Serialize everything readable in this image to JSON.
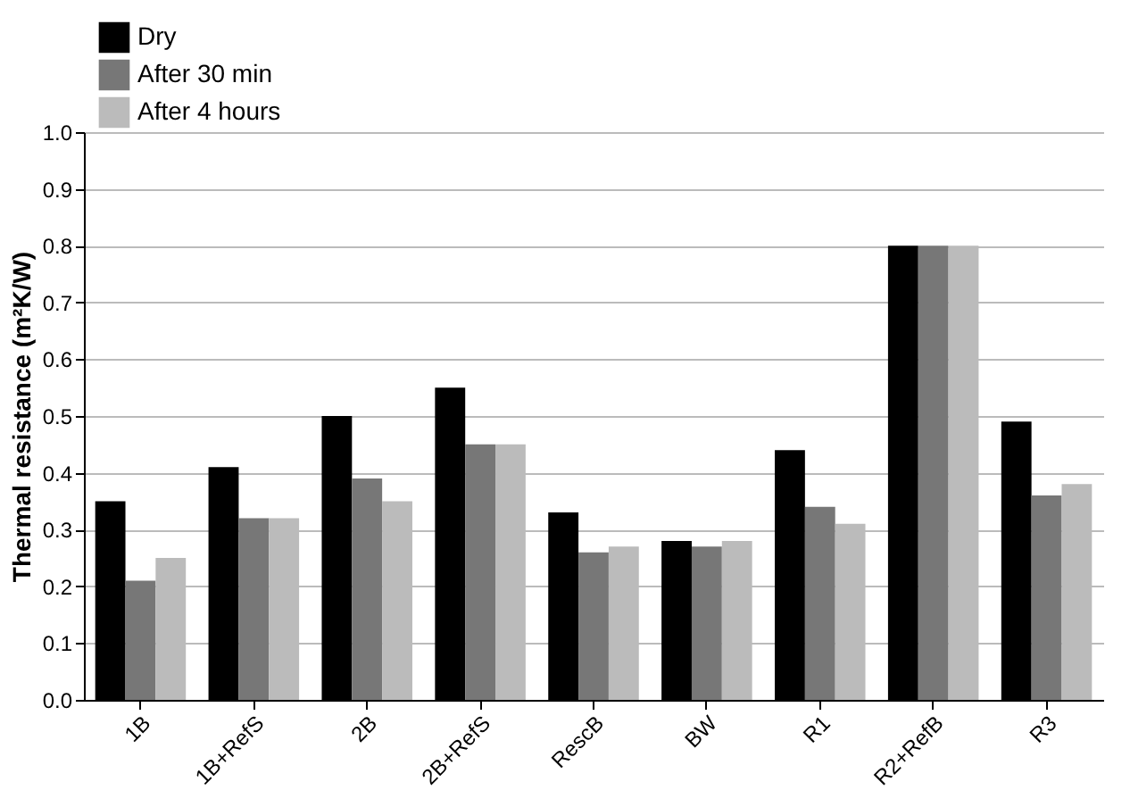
{
  "chart_data": {
    "type": "bar",
    "ylabel": "Thermal resistance (m²K/W)",
    "categories": [
      "1B",
      "1B+RefS",
      "2B",
      "2B+RefS",
      "RescB",
      "BW",
      "R1",
      "R2+RefB",
      "R3"
    ],
    "series": [
      {
        "name": "Dry",
        "color": "#000000",
        "values": [
          0.35,
          0.41,
          0.5,
          0.55,
          0.33,
          0.28,
          0.44,
          0.8,
          0.49
        ]
      },
      {
        "name": "After 30 min",
        "color": "#777777",
        "values": [
          0.21,
          0.32,
          0.39,
          0.45,
          0.26,
          0.27,
          0.34,
          0.8,
          0.36
        ]
      },
      {
        "name": "After 4 hours",
        "color": "#bbbbbb",
        "values": [
          0.25,
          0.32,
          0.35,
          0.45,
          0.27,
          0.28,
          0.31,
          0.8,
          0.38
        ]
      }
    ],
    "ylim": [
      0,
      1.0
    ],
    "yticks": [
      {
        "value": 0,
        "label": "0.0"
      },
      0.1,
      0.2,
      0.3,
      0.4,
      0.5,
      0.6,
      0.7,
      0.8,
      0.9,
      {
        "value": 1.0,
        "label": "1.0"
      }
    ],
    "grid": "y",
    "legend": "top left"
  }
}
